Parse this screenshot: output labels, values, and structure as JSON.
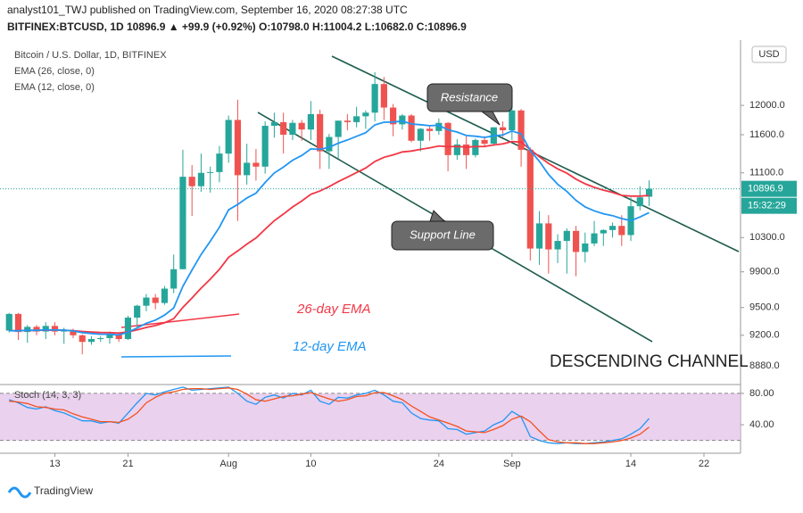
{
  "header": {
    "line1": "analyst101_TWJ published on TradingView.com, September 16, 2020 08:27:38 UTC",
    "line2": "BITFINEX:BTCUSD, 1D 10896.9 ▲ +99.9 (+0.92%) O:10798.0 H:11004.2 L:10682.0 C:10896.9"
  },
  "footer": {
    "brand": "TradingView"
  },
  "chart_data": [
    {
      "type": "candlestick",
      "title": "Bitcoin / U.S. Dollar, 1D, BITFINEX",
      "currency": "USD",
      "countdown": "15:32:29",
      "log_scale": true,
      "up_color": "#26a69a",
      "down_color": "#ef5350",
      "annotations": [
        "Resistance",
        "Support Line",
        "26-day EMA",
        "12-day EMA",
        "DESCENDING CHANNEL"
      ],
      "xlim": [
        "2020-07-07",
        "2020-09-26"
      ],
      "xticks": [
        {
          "value": "2020-07-13",
          "label": "13"
        },
        {
          "value": "2020-07-21",
          "label": "21"
        },
        {
          "value": "2020-08-01",
          "label": "Aug"
        },
        {
          "value": "2020-08-10",
          "label": "10"
        },
        {
          "value": "2020-08-24",
          "label": "24"
        },
        {
          "value": "2020-09-01",
          "label": "Sep"
        },
        {
          "value": "2020-09-14",
          "label": "14"
        },
        {
          "value": "2020-09-22",
          "label": "22"
        }
      ],
      "ylim": [
        8700,
        12900
      ],
      "yticks": [
        {
          "value": 8880,
          "label": "8880.0"
        },
        {
          "value": 9200,
          "label": "9200.0"
        },
        {
          "value": 9500,
          "label": "9500.0"
        },
        {
          "value": 9900,
          "label": "9900.0"
        },
        {
          "value": 10300,
          "label": "10300.0"
        },
        {
          "value": 11100,
          "label": "11100.0"
        },
        {
          "value": 11600,
          "label": "11600.0"
        },
        {
          "value": 12000,
          "label": "12000.0"
        }
      ],
      "x": [
        "2020-07-08",
        "2020-07-09",
        "2020-07-10",
        "2020-07-11",
        "2020-07-12",
        "2020-07-13",
        "2020-07-14",
        "2020-07-15",
        "2020-07-16",
        "2020-07-17",
        "2020-07-18",
        "2020-07-19",
        "2020-07-20",
        "2020-07-21",
        "2020-07-22",
        "2020-07-23",
        "2020-07-24",
        "2020-07-25",
        "2020-07-26",
        "2020-07-27",
        "2020-07-28",
        "2020-07-29",
        "2020-07-30",
        "2020-07-31",
        "2020-08-01",
        "2020-08-02",
        "2020-08-03",
        "2020-08-04",
        "2020-08-05",
        "2020-08-06",
        "2020-08-07",
        "2020-08-08",
        "2020-08-09",
        "2020-08-10",
        "2020-08-11",
        "2020-08-12",
        "2020-08-13",
        "2020-08-14",
        "2020-08-15",
        "2020-08-16",
        "2020-08-17",
        "2020-08-18",
        "2020-08-19",
        "2020-08-20",
        "2020-08-21",
        "2020-08-22",
        "2020-08-23",
        "2020-08-24",
        "2020-08-25",
        "2020-08-26",
        "2020-08-27",
        "2020-08-28",
        "2020-08-29",
        "2020-08-30",
        "2020-08-31",
        "2020-09-01",
        "2020-09-02",
        "2020-09-03",
        "2020-09-04",
        "2020-09-05",
        "2020-09-06",
        "2020-09-07",
        "2020-09-08",
        "2020-09-09",
        "2020-09-10",
        "2020-09-11",
        "2020-09-12",
        "2020-09-13",
        "2020-09-14",
        "2020-09-15",
        "2020-09-16"
      ],
      "open": [
        9250,
        9430,
        9235,
        9290,
        9240,
        9300,
        9240,
        9250,
        9200,
        9130,
        9160,
        9170,
        9210,
        9160,
        9390,
        9520,
        9610,
        9550,
        9710,
        9930,
        11050,
        10930,
        11100,
        11110,
        11350,
        11800,
        11070,
        11230,
        11180,
        11720,
        11770,
        11600,
        11760,
        11670,
        11880,
        11380,
        11570,
        11790,
        11770,
        11850,
        11900,
        12300,
        11970,
        11740,
        11860,
        11520,
        11680,
        11650,
        11760,
        11330,
        11470,
        11330,
        11530,
        11480,
        11700,
        11660,
        11930,
        11400,
        10170,
        10470,
        10160,
        10260,
        10380,
        10130,
        10230,
        10350,
        10390,
        10440,
        10330,
        10680,
        10798
      ],
      "high": [
        9440,
        9440,
        9310,
        9310,
        9340,
        9340,
        9280,
        9270,
        9210,
        9190,
        9190,
        9240,
        9220,
        9410,
        9530,
        9650,
        9650,
        9740,
        10100,
        11400,
        11200,
        11350,
        11180,
        11450,
        11860,
        12080,
        11480,
        11410,
        11780,
        11900,
        11900,
        11800,
        11800,
        12060,
        11940,
        11610,
        11790,
        11880,
        11980,
        11930,
        12470,
        12400,
        12020,
        11880,
        11880,
        11690,
        11720,
        11820,
        11770,
        11540,
        11580,
        11550,
        11580,
        11700,
        11780,
        12080,
        11950,
        11430,
        10620,
        10570,
        10340,
        10410,
        10440,
        10360,
        10500,
        10400,
        10480,
        10570,
        10790,
        10930,
        11004.2
      ],
      "low": [
        9230,
        9150,
        9120,
        9200,
        9160,
        9200,
        9110,
        9170,
        9000,
        9100,
        9130,
        9110,
        9130,
        9150,
        9270,
        9460,
        9480,
        9530,
        9660,
        9930,
        10560,
        10860,
        10850,
        10980,
        11230,
        10500,
        10950,
        11000,
        11090,
        11560,
        11350,
        11530,
        11520,
        11530,
        11150,
        11150,
        11290,
        11660,
        11700,
        11680,
        11780,
        11800,
        11580,
        11670,
        11500,
        11380,
        11520,
        11600,
        11120,
        11270,
        11150,
        11300,
        11430,
        11460,
        11570,
        11530,
        11180,
        10030,
        9980,
        9880,
        10000,
        9880,
        9850,
        10010,
        10200,
        10200,
        10300,
        10200,
        10260,
        10630,
        10682
      ],
      "close": [
        9430,
        9235,
        9290,
        9240,
        9300,
        9240,
        9250,
        9200,
        9130,
        9160,
        9170,
        9210,
        9160,
        9390,
        9520,
        9610,
        9550,
        9710,
        9930,
        11050,
        10930,
        11100,
        11110,
        11350,
        11800,
        11070,
        11230,
        11180,
        11720,
        11770,
        11600,
        11760,
        11670,
        11880,
        11380,
        11570,
        11790,
        11770,
        11850,
        11900,
        12300,
        11970,
        11740,
        11860,
        11520,
        11680,
        11650,
        11760,
        11330,
        11470,
        11330,
        11530,
        11480,
        11700,
        11660,
        11930,
        11400,
        10170,
        10470,
        10160,
        10260,
        10380,
        10130,
        10230,
        10350,
        10390,
        10440,
        10330,
        10680,
        10790,
        10896.9
      ],
      "series": [
        {
          "name": "EMA (26, close, 0)",
          "color": "#f23645",
          "values": [
            9250,
            9249,
            9252,
            9251,
            9255,
            9254,
            9254,
            9250,
            9241,
            9235,
            9230,
            9229,
            9224,
            9236,
            9257,
            9284,
            9304,
            9334,
            9378,
            9501,
            9605,
            9715,
            9817,
            9929,
            10068,
            10142,
            10223,
            10294,
            10400,
            10503,
            10584,
            10671,
            10744,
            10828,
            10869,
            10924,
            10988,
            11045,
            11104,
            11163,
            11247,
            11301,
            11333,
            11372,
            11383,
            11406,
            11424,
            11450,
            11441,
            11443,
            11435,
            11442,
            11444,
            11463,
            11477,
            11509,
            11501,
            11403,
            11307,
            11222,
            11151,
            11096,
            11019,
            10961,
            10916,
            10881,
            10853,
            10815,
            10806,
            10806,
            10813
          ]
        },
        {
          "name": "EMA (12, close, 0)",
          "color": "#2196f3",
          "values": [
            9250,
            9248,
            9254,
            9252,
            9259,
            9256,
            9255,
            9247,
            9229,
            9219,
            9211,
            9211,
            9203,
            9233,
            9278,
            9329,
            9363,
            9417,
            9495,
            9735,
            9920,
            10101,
            10256,
            10424,
            10636,
            10702,
            10782,
            10842,
            10977,
            11098,
            11175,
            11263,
            11325,
            11411,
            11406,
            11432,
            11487,
            11530,
            11579,
            11628,
            11732,
            11769,
            11771,
            11785,
            11745,
            11735,
            11722,
            11728,
            11666,
            11636,
            11589,
            11580,
            11564,
            11585,
            11597,
            11650,
            11611,
            11390,
            11248,
            11080,
            10954,
            10865,
            10752,
            10672,
            10623,
            10587,
            10564,
            10528,
            10504,
            10548,
            10602
          ]
        }
      ]
    },
    {
      "type": "line",
      "title": "Stoch (14, 3, 3)",
      "ylim": [
        6,
        89
      ],
      "band": [
        20,
        80
      ],
      "band_color": "#e1bee7",
      "yticks": [
        {
          "value": 40,
          "label": "40.00"
        },
        {
          "value": 80,
          "label": "80.00"
        }
      ],
      "series": [
        {
          "color": "#2196f3",
          "values": [
            72,
            68,
            62,
            60,
            63,
            58,
            55,
            50,
            45,
            45,
            42,
            44,
            42,
            55,
            68,
            80,
            78,
            82,
            85,
            88,
            84,
            85,
            86,
            87,
            88,
            80,
            70,
            66,
            75,
            78,
            74,
            80,
            78,
            84,
            70,
            66,
            75,
            74,
            78,
            80,
            84,
            78,
            70,
            68,
            55,
            48,
            46,
            45,
            35,
            34,
            28,
            30,
            32,
            40,
            45,
            57,
            50,
            25,
            20,
            17,
            16,
            17,
            16,
            16,
            17,
            18,
            20,
            22,
            28,
            35,
            48
          ]
        },
        {
          "color": "#f4511e",
          "values": [
            70,
            69,
            67,
            63,
            62,
            60,
            59,
            54,
            50,
            47,
            44,
            44,
            43,
            47,
            55,
            68,
            75,
            80,
            82,
            85,
            86,
            86,
            85,
            86,
            87,
            85,
            79,
            72,
            70,
            73,
            76,
            77,
            79,
            81,
            77,
            73,
            70,
            72,
            76,
            77,
            81,
            81,
            77,
            72,
            64,
            57,
            50,
            46,
            42,
            38,
            32,
            31,
            30,
            34,
            39,
            47,
            51,
            44,
            32,
            21,
            18,
            17,
            17,
            16,
            16,
            17,
            18,
            20,
            23,
            28,
            37
          ]
        }
      ]
    }
  ]
}
